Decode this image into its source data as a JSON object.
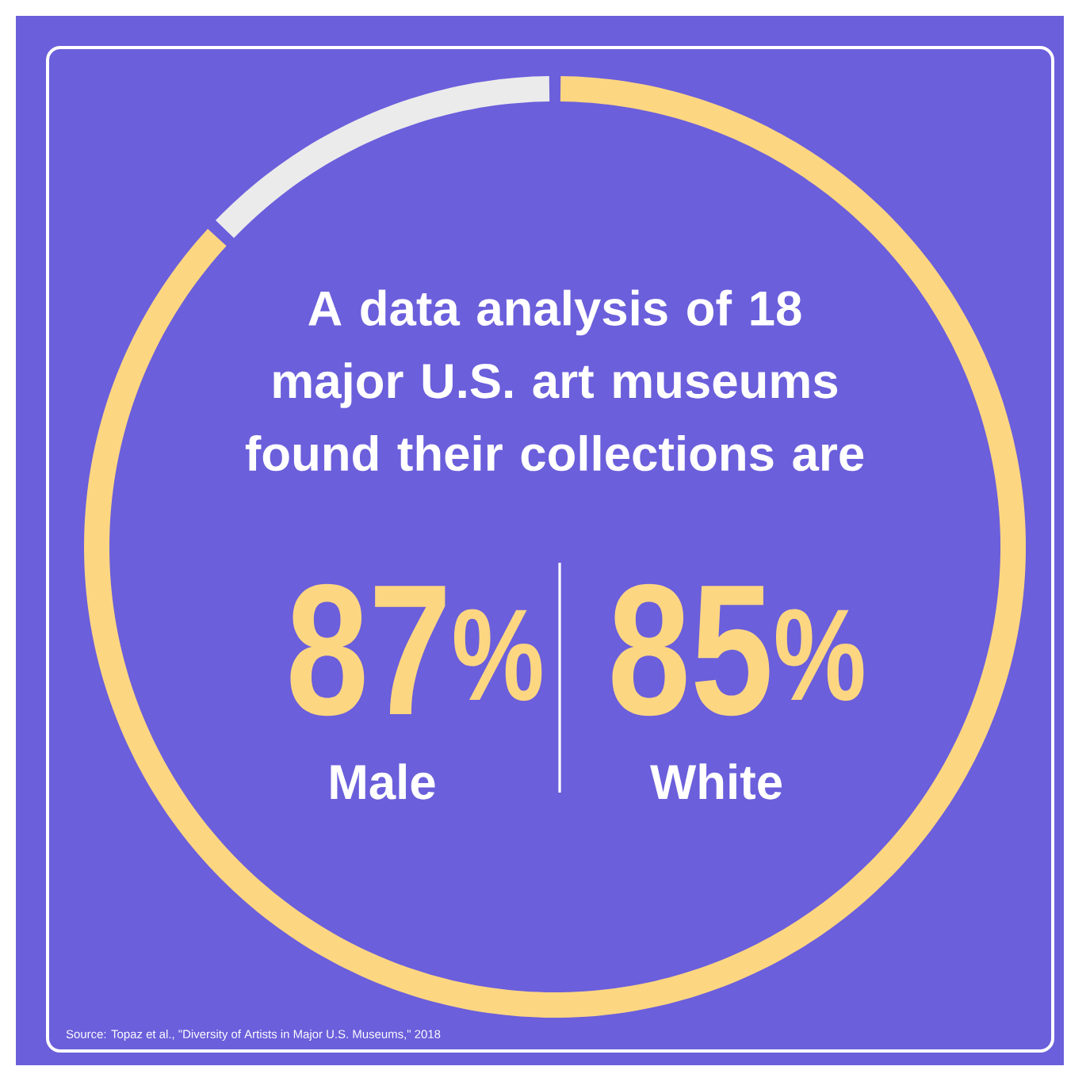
{
  "chart_data": {
    "type": "donut",
    "title": "A data analysis of 18 major U.S. art museums found their collections are",
    "categories": [
      "Male",
      null
    ],
    "values": [
      87,
      13
    ],
    "colors": [
      "#fdd681",
      "#ebebeb"
    ],
    "value_labels": [
      "87$^{%}$",
      null
    ],
    "annotations": [
      "85$^{%}$",
      "White",
      "Source: Topaz et al., \"Diversity of Artists in Major U.S. Museums,\" 2018"
    ]
  }
}
